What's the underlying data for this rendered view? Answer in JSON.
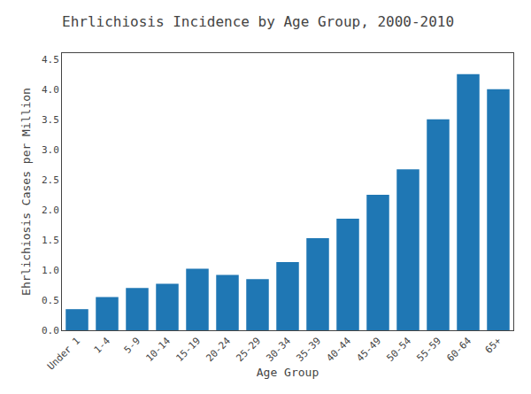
{
  "chart_data": {
    "type": "bar",
    "title": "Ehrlichiosis Incidence by Age Group, 2000-2010",
    "xlabel": "Age Group",
    "ylabel": "Ehrlichiosis Cases per Million",
    "categories": [
      "Under 1",
      "1-4",
      "5-9",
      "10-14",
      "15-19",
      "20-24",
      "25-29",
      "30-34",
      "35-39",
      "40-44",
      "45-49",
      "50-54",
      "55-59",
      "60-64",
      "65+"
    ],
    "values": [
      0.35,
      0.55,
      0.7,
      0.77,
      1.02,
      0.92,
      0.85,
      1.13,
      1.53,
      1.85,
      2.25,
      2.67,
      3.5,
      4.25,
      4.0
    ],
    "ylim": [
      0,
      4.6
    ],
    "yticks": [
      {
        "value": 0.0,
        "label": "0.0"
      },
      0.5,
      {
        "value": 1.0,
        "label": "1.0"
      },
      1.5,
      {
        "value": 2.0,
        "label": "2.0"
      },
      2.5,
      {
        "value": 3.0,
        "label": "3.0"
      },
      3.5,
      {
        "value": 4.0,
        "label": "4.0"
      },
      4.5
    ],
    "grid": false
  }
}
